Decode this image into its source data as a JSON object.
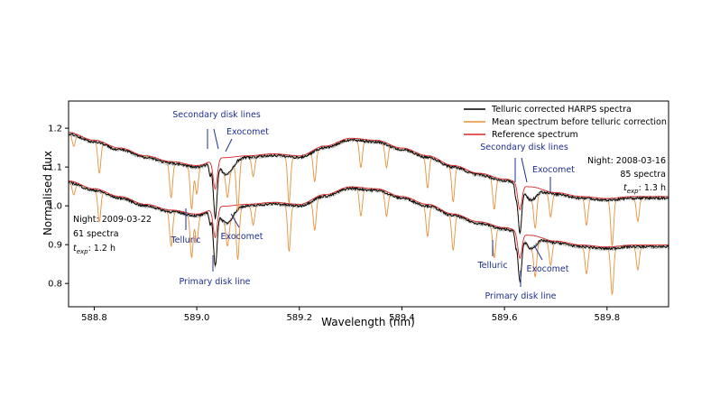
{
  "chart_data": {
    "type": "line",
    "xlabel": "Wavelength (nm)",
    "ylabel": "Normalised flux",
    "xlim": [
      588.75,
      589.92
    ],
    "ylim": [
      0.74,
      1.27
    ],
    "xticks": [
      588.8,
      589.0,
      589.2,
      589.4,
      589.6,
      589.8
    ],
    "yticks": [
      0.8,
      0.9,
      1.0,
      1.1,
      1.2
    ],
    "legend": {
      "placement": "top-right",
      "entries": [
        {
          "label": "Telluric corrected HARPS spectra",
          "color": "#000000"
        },
        {
          "label": "Mean spectrum before telluric correction",
          "color": "#e8903a"
        },
        {
          "label": "Reference spectrum",
          "color": "#d62728"
        }
      ]
    },
    "colors": {
      "annotation": "#1f2f8f",
      "grey_spectra": "#9aa09a"
    },
    "upper_offset": 0.125,
    "continuum": {
      "x": [
        588.75,
        588.8,
        588.85,
        588.9,
        588.95,
        589.0,
        589.05,
        589.1,
        589.15,
        589.2,
        589.25,
        589.3,
        589.35,
        589.4,
        589.45,
        589.5,
        589.55,
        589.6,
        589.65,
        589.7,
        589.75,
        589.8,
        589.85,
        589.92
      ],
      "y": [
        1.06,
        1.04,
        1.02,
        1.0,
        0.985,
        0.975,
        0.995,
        1.0,
        1.005,
        1.0,
        1.025,
        1.045,
        1.04,
        1.02,
        1.0,
        0.975,
        0.955,
        0.94,
        0.92,
        0.905,
        0.895,
        0.89,
        0.895,
        0.895
      ]
    },
    "stellar_lines": [
      {
        "x": 589.036,
        "depth": 0.14,
        "width": 0.0035,
        "label": "primary disk line"
      },
      {
        "x": 589.026,
        "depth": 0.03,
        "width": 0.002,
        "label": "secondary disk line"
      },
      {
        "x": 589.058,
        "depth": 0.04,
        "width": 0.012,
        "label": "exocomet"
      },
      {
        "x": 589.63,
        "depth": 0.12,
        "width": 0.0035,
        "label": "primary disk line"
      },
      {
        "x": 589.622,
        "depth": 0.03,
        "width": 0.002,
        "label": "secondary disk line"
      },
      {
        "x": 589.652,
        "depth": 0.03,
        "width": 0.01,
        "label": "exocomet"
      }
    ],
    "telluric_lines": [
      {
        "x": 588.76,
        "depth": 0.03
      },
      {
        "x": 588.81,
        "depth": 0.08
      },
      {
        "x": 588.95,
        "depth": 0.09
      },
      {
        "x": 588.99,
        "depth": 0.11
      },
      {
        "x": 589.0,
        "depth": 0.07
      },
      {
        "x": 589.06,
        "depth": 0.06
      },
      {
        "x": 589.08,
        "depth": 0.13
      },
      {
        "x": 589.11,
        "depth": 0.05
      },
      {
        "x": 589.18,
        "depth": 0.12
      },
      {
        "x": 589.23,
        "depth": 0.08
      },
      {
        "x": 589.32,
        "depth": 0.07
      },
      {
        "x": 589.37,
        "depth": 0.06
      },
      {
        "x": 589.45,
        "depth": 0.08
      },
      {
        "x": 589.5,
        "depth": 0.09
      },
      {
        "x": 589.58,
        "depth": 0.08
      },
      {
        "x": 589.66,
        "depth": 0.08
      },
      {
        "x": 589.69,
        "depth": 0.06
      },
      {
        "x": 589.76,
        "depth": 0.07
      },
      {
        "x": 589.81,
        "depth": 0.12
      },
      {
        "x": 589.86,
        "depth": 0.06
      }
    ],
    "annotations_lower": {
      "night": "Night: 2009-03-22",
      "spectra": "61 spectra",
      "texp_prefix": "t",
      "texp_sub": "exp",
      "texp_value": ": 1.2 h",
      "telluric": "Telluric",
      "exocomet": "Exocomet",
      "primary": "Primary disk line",
      "secondary": "Secondary disk lines"
    },
    "annotations_upper": {
      "night": "Night: 2008-03-16",
      "spectra": "85 spectra",
      "texp_prefix": "t",
      "texp_sub": "exp",
      "texp_value": ": 1.3 h",
      "telluric": "Telluric",
      "exocomet": "Exocomet",
      "primary": "Primary disk line",
      "secondary": "Secondary disk lines"
    },
    "upper_secondary_label": "Secondary disk lines",
    "upper_exocomet_label": "Exocomet"
  }
}
